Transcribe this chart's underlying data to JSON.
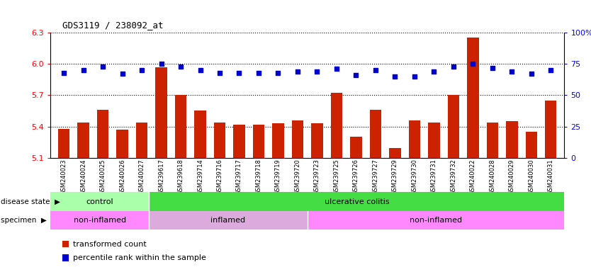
{
  "title": "GDS3119 / 238092_at",
  "samples": [
    "GSM240023",
    "GSM240024",
    "GSM240025",
    "GSM240026",
    "GSM240027",
    "GSM239617",
    "GSM239618",
    "GSM239714",
    "GSM239716",
    "GSM239717",
    "GSM239718",
    "GSM239719",
    "GSM239720",
    "GSM239723",
    "GSM239725",
    "GSM239726",
    "GSM239727",
    "GSM239729",
    "GSM239730",
    "GSM239731",
    "GSM239732",
    "GSM240022",
    "GSM240028",
    "GSM240029",
    "GSM240030",
    "GSM240031"
  ],
  "bar_values": [
    5.38,
    5.44,
    5.56,
    5.37,
    5.44,
    5.97,
    5.7,
    5.55,
    5.44,
    5.42,
    5.42,
    5.43,
    5.46,
    5.43,
    5.72,
    5.3,
    5.56,
    5.19,
    5.46,
    5.44,
    5.7,
    6.25,
    5.44,
    5.45,
    5.35,
    5.65
  ],
  "percentile_values": [
    68,
    70,
    73,
    67,
    70,
    75,
    73,
    70,
    68,
    68,
    68,
    68,
    69,
    69,
    71,
    66,
    70,
    65,
    65,
    69,
    73,
    75,
    72,
    69,
    67,
    70
  ],
  "bar_color": "#cc2200",
  "dot_color": "#0000cc",
  "ylim_left": [
    5.1,
    6.3
  ],
  "ylim_right": [
    0,
    100
  ],
  "left_yticks": [
    5.1,
    5.4,
    5.7,
    6.0,
    6.3
  ],
  "right_yticks": [
    0,
    25,
    50,
    75,
    100
  ],
  "right_yticklabels": [
    "0",
    "25",
    "50",
    "75",
    "100%"
  ],
  "disease_state_groups": [
    {
      "label": "control",
      "start": 0,
      "end": 5,
      "color": "#aaffaa"
    },
    {
      "label": "ulcerative colitis",
      "start": 5,
      "end": 26,
      "color": "#44dd44"
    }
  ],
  "specimen_groups": [
    {
      "label": "non-inflamed",
      "start": 0,
      "end": 5,
      "color": "#ff88ff"
    },
    {
      "label": "inflamed",
      "start": 5,
      "end": 13,
      "color": "#ddaadd"
    },
    {
      "label": "non-inflamed",
      "start": 13,
      "end": 26,
      "color": "#ff88ff"
    }
  ],
  "legend_bar_label": "transformed count",
  "legend_dot_label": "percentile rank within the sample",
  "disease_state_label": "disease state",
  "specimen_label": "specimen",
  "background_color": "#ffffff"
}
